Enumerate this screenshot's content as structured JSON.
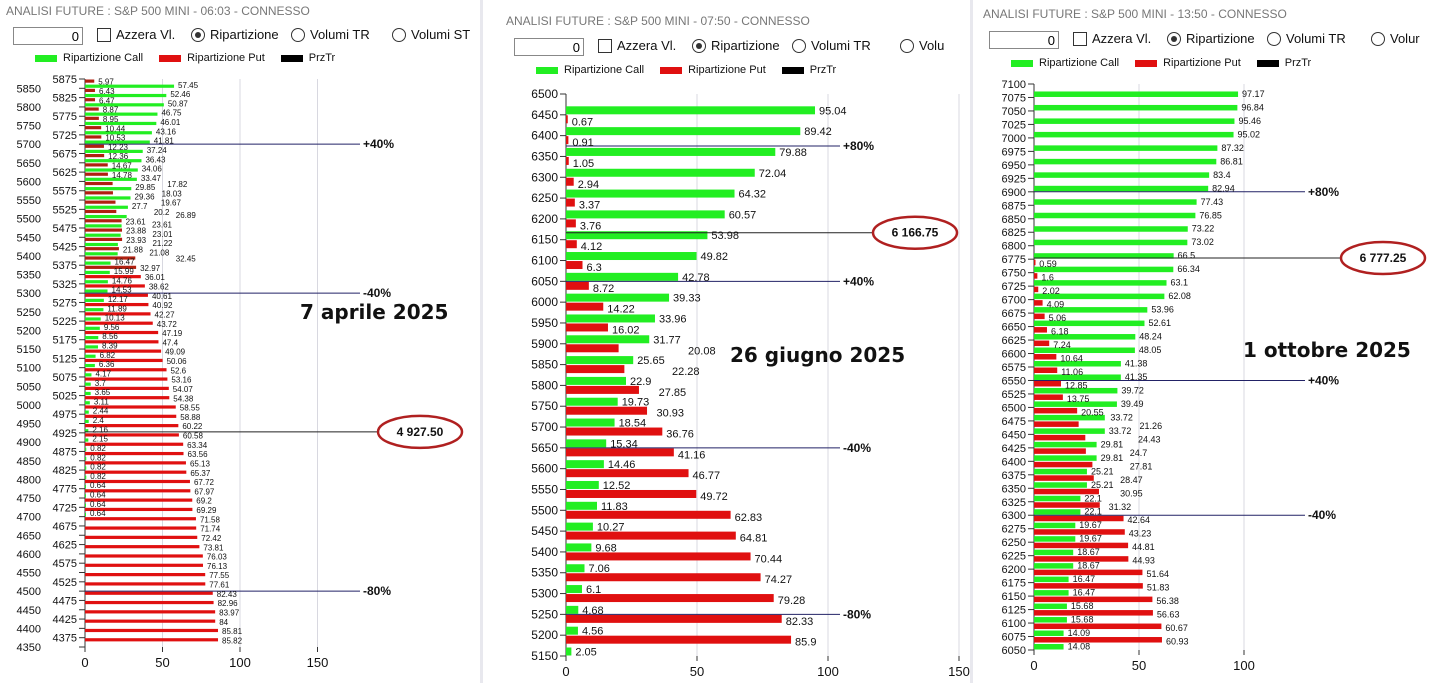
{
  "colors": {
    "call": "#22ee22",
    "put": "#e01010",
    "put_dark": "#b02010",
    "prztr": "#000000",
    "level_line": "#222266",
    "ellipse": "#b02020"
  },
  "panels": [
    {
      "title": "ANALISI FUTURE : S&P 500 MINI - 06:03 - CONNESSO",
      "toolbar": {
        "number_value": "0",
        "checkbox_label": "Azzera Vl.",
        "radio_1": "Ripartizione",
        "radio_2": "Volumi TR",
        "radio_3": "Volumi ST"
      },
      "legend": {
        "call": "Ripartizione Call",
        "put": "Ripartizione Put",
        "prztr": "PrzTr"
      },
      "date_label": "7 aprile 2025"
    },
    {
      "title": "ANALISI FUTURE : S&P 500 MINI - 07:50 - CONNESSO",
      "toolbar": {
        "number_value": "0",
        "checkbox_label": "Azzera Vl.",
        "radio_1": "Ripartizione",
        "radio_2": "Volumi TR",
        "radio_3": "Volu"
      },
      "legend": {
        "call": "Ripartizione Call",
        "put": "Ripartizione Put",
        "prztr": "PrzTr"
      },
      "date_label": "26 giugno 2025"
    },
    {
      "title": "ANALISI FUTURE : S&P 500 MINI - 13:50 - CONNESSO",
      "toolbar": {
        "number_value": "0",
        "checkbox_label": "Azzera Vl.",
        "radio_1": "Ripartizione",
        "radio_2": "Volumi TR",
        "radio_3": "Volur"
      },
      "legend": {
        "call": "Ripartizione Call",
        "put": "Ripartizione Put",
        "prztr": "PrzTr"
      },
      "date_label": "1 ottobre 2025"
    }
  ],
  "chart_data": [
    {
      "type": "bar",
      "orientation": "horizontal",
      "title": "7 aprile 2025",
      "xlim": [
        0,
        150
      ],
      "xticks": [
        0,
        50,
        100,
        150
      ],
      "grid": true,
      "y_range": [
        4350,
        5875
      ],
      "series": [
        {
          "name": "Ripartizione Call",
          "points": [
            [
              5850,
              57.45
            ],
            [
              5825,
              52.46
            ],
            [
              5800,
              50.87
            ],
            [
              5775,
              46.75
            ],
            [
              5750,
              46.01
            ],
            [
              5725,
              43.16
            ],
            [
              5700,
              41.81
            ],
            [
              5675,
              37.24
            ],
            [
              5650,
              36.43
            ],
            [
              5625,
              34.06
            ],
            [
              5600,
              33.47
            ],
            [
              5575,
              29.85
            ],
            [
              5550,
              29.36
            ],
            [
              5525,
              27.7
            ],
            [
              5500,
              26.89
            ],
            [
              5475,
              23.61
            ],
            [
              5450,
              23.01
            ],
            [
              5425,
              21.22
            ],
            [
              5400,
              21.08
            ],
            [
              5375,
              16.47
            ],
            [
              5350,
              15.99
            ],
            [
              5325,
              14.76
            ],
            [
              5300,
              14.53
            ],
            [
              5275,
              12.17
            ],
            [
              5250,
              11.89
            ],
            [
              5225,
              10.13
            ],
            [
              5200,
              9.56
            ],
            [
              5175,
              8.56
            ],
            [
              5150,
              8.39
            ],
            [
              5125,
              6.82
            ],
            [
              5100,
              6.36
            ],
            [
              5075,
              4.17
            ],
            [
              5050,
              3.7
            ],
            [
              5025,
              3.65
            ],
            [
              5000,
              3.11
            ],
            [
              4975,
              2.44
            ],
            [
              4950,
              2.4
            ],
            [
              4925,
              2.16
            ],
            [
              4900,
              2.15
            ],
            [
              4875,
              0.82
            ],
            [
              4850,
              0.82
            ],
            [
              4825,
              0.82
            ],
            [
              4800,
              0.82
            ],
            [
              4775,
              0.64
            ],
            [
              4750,
              0.64
            ],
            [
              4725,
              0.64
            ],
            [
              4700,
              0.64
            ]
          ]
        },
        {
          "name": "Ripartizione Put",
          "points": [
            [
              5875,
              5.97
            ],
            [
              5850,
              6.43
            ],
            [
              5825,
              6.47
            ],
            [
              5800,
              8.87
            ],
            [
              5775,
              8.95
            ],
            [
              5750,
              10.44
            ],
            [
              5725,
              10.53
            ],
            [
              5700,
              12.23
            ],
            [
              5675,
              12.36
            ],
            [
              5650,
              14.67
            ],
            [
              5625,
              14.78
            ],
            [
              5600,
              17.82
            ],
            [
              5575,
              18.03
            ],
            [
              5550,
              19.67
            ],
            [
              5525,
              20.2
            ],
            [
              5500,
              23.61
            ],
            [
              5475,
              23.88
            ],
            [
              5450,
              23.93
            ],
            [
              5425,
              21.88
            ],
            [
              5400,
              32.45
            ],
            [
              5375,
              32.97
            ],
            [
              5350,
              36.01
            ],
            [
              5325,
              38.62
            ],
            [
              5300,
              40.61
            ],
            [
              5275,
              40.92
            ],
            [
              5250,
              42.27
            ],
            [
              5225,
              43.72
            ],
            [
              5200,
              47.19
            ],
            [
              5175,
              47.4
            ],
            [
              5150,
              49.09
            ],
            [
              5125,
              50.06
            ],
            [
              5100,
              52.6
            ],
            [
              5075,
              53.16
            ],
            [
              5050,
              54.07
            ],
            [
              5025,
              54.38
            ],
            [
              5000,
              58.55
            ],
            [
              4975,
              58.88
            ],
            [
              4950,
              60.22
            ],
            [
              4925,
              60.58
            ],
            [
              4900,
              63.34
            ],
            [
              4875,
              63.56
            ],
            [
              4850,
              65.13
            ],
            [
              4825,
              65.37
            ],
            [
              4800,
              67.72
            ],
            [
              4775,
              67.97
            ],
            [
              4750,
              69.2
            ],
            [
              4725,
              69.29
            ],
            [
              4700,
              71.58
            ],
            [
              4675,
              71.74
            ],
            [
              4650,
              72.42
            ],
            [
              4625,
              73.81
            ],
            [
              4600,
              76.03
            ],
            [
              4575,
              76.13
            ],
            [
              4550,
              77.55
            ],
            [
              4525,
              77.61
            ],
            [
              4500,
              82.43
            ],
            [
              4475,
              82.96
            ],
            [
              4450,
              83.97
            ],
            [
              4425,
              84
            ],
            [
              4400,
              85.81
            ],
            [
              4375,
              85.82
            ]
          ]
        }
      ],
      "levels": [
        {
          "y": 5700,
          "label": "+40%"
        },
        {
          "y": 5300,
          "label": "-40%"
        },
        {
          "y": 4500,
          "label": "-80%"
        }
      ],
      "price_marker": {
        "y": 4927.5,
        "label": "4 927.50"
      }
    },
    {
      "type": "bar",
      "orientation": "horizontal",
      "title": "26 giugno 2025",
      "xlim": [
        0,
        150
      ],
      "xticks": [
        0,
        50,
        100,
        150
      ],
      "grid": true,
      "y_range": [
        5150,
        6500
      ],
      "series": [
        {
          "name": "Ripartizione Call",
          "points": [
            [
              6450,
              95.04
            ],
            [
              6400,
              89.42
            ],
            [
              6350,
              79.88
            ],
            [
              6300,
              72.04
            ],
            [
              6250,
              64.32
            ],
            [
              6200,
              60.57
            ],
            [
              6150,
              53.98
            ],
            [
              6100,
              49.82
            ],
            [
              6050,
              42.78
            ],
            [
              6000,
              39.33
            ],
            [
              5950,
              33.96
            ],
            [
              5900,
              31.77
            ],
            [
              5850,
              25.65
            ],
            [
              5800,
              22.9
            ],
            [
              5750,
              19.73
            ],
            [
              5700,
              18.54
            ],
            [
              5650,
              15.34
            ],
            [
              5600,
              14.46
            ],
            [
              5550,
              12.52
            ],
            [
              5500,
              11.83
            ],
            [
              5450,
              10.27
            ],
            [
              5400,
              9.68
            ],
            [
              5350,
              7.06
            ],
            [
              5300,
              6.1
            ],
            [
              5250,
              4.68
            ],
            [
              5200,
              4.56
            ],
            [
              5150,
              2.05
            ]
          ]
        },
        {
          "name": "Ripartizione Put",
          "points": [
            [
              6450,
              0.67
            ],
            [
              6400,
              0.91
            ],
            [
              6350,
              1.05
            ],
            [
              6300,
              2.94
            ],
            [
              6250,
              3.37
            ],
            [
              6200,
              3.76
            ],
            [
              6150,
              4.12
            ],
            [
              6100,
              6.3
            ],
            [
              6050,
              8.72
            ],
            [
              6000,
              14.22
            ],
            [
              5950,
              16.02
            ],
            [
              5900,
              20.08
            ],
            [
              5850,
              22.28
            ],
            [
              5800,
              27.85
            ],
            [
              5750,
              30.93
            ],
            [
              5700,
              36.76
            ],
            [
              5650,
              41.16
            ],
            [
              5600,
              46.77
            ],
            [
              5550,
              49.72
            ],
            [
              5500,
              62.83
            ],
            [
              5450,
              64.81
            ],
            [
              5400,
              70.44
            ],
            [
              5350,
              74.27
            ],
            [
              5300,
              79.28
            ],
            [
              5250,
              82.33
            ],
            [
              5200,
              85.9
            ]
          ]
        }
      ],
      "levels": [
        {
          "y": 6375,
          "label": "+80%"
        },
        {
          "y": 6050,
          "label": "+40%"
        },
        {
          "y": 5650,
          "label": "-40%"
        },
        {
          "y": 5250,
          "label": "-80%"
        }
      ],
      "price_marker": {
        "y": 6166.75,
        "label": "6 166.75"
      }
    },
    {
      "type": "bar",
      "orientation": "horizontal",
      "title": "1 ottobre 2025",
      "xlim": [
        0,
        150
      ],
      "xticks": [
        0,
        50,
        100
      ],
      "grid": true,
      "y_range": [
        6050,
        7100
      ],
      "series": [
        {
          "name": "Ripartizione Call",
          "points": [
            [
              7075,
              97.17
            ],
            [
              7050,
              96.84
            ],
            [
              7025,
              95.46
            ],
            [
              7000,
              95.02
            ],
            [
              6975,
              87.32
            ],
            [
              6950,
              86.81
            ],
            [
              6925,
              83.4
            ],
            [
              6900,
              82.94
            ],
            [
              6875,
              77.43
            ],
            [
              6850,
              76.85
            ],
            [
              6825,
              73.22
            ],
            [
              6800,
              73.02
            ],
            [
              6775,
              66.5
            ],
            [
              6750,
              66.34
            ],
            [
              6725,
              63.1
            ],
            [
              6700,
              62.08
            ],
            [
              6675,
              53.96
            ],
            [
              6650,
              52.61
            ],
            [
              6625,
              48.24
            ],
            [
              6600,
              48.05
            ],
            [
              6575,
              41.38
            ],
            [
              6550,
              41.35
            ],
            [
              6525,
              39.72
            ],
            [
              6500,
              39.49
            ],
            [
              6475,
              33.72
            ],
            [
              6450,
              33.72
            ],
            [
              6425,
              29.81
            ],
            [
              6400,
              29.81
            ],
            [
              6375,
              25.21
            ],
            [
              6350,
              25.21
            ],
            [
              6325,
              22.1
            ],
            [
              6300,
              22.1
            ],
            [
              6275,
              19.67
            ],
            [
              6250,
              19.67
            ],
            [
              6225,
              18.67
            ],
            [
              6200,
              18.67
            ],
            [
              6175,
              16.47
            ],
            [
              6150,
              16.47
            ],
            [
              6125,
              15.68
            ],
            [
              6100,
              15.68
            ],
            [
              6075,
              14.09
            ],
            [
              6050,
              14.08
            ]
          ]
        },
        {
          "name": "Ripartizione Put",
          "points": [
            [
              6775,
              0.59
            ],
            [
              6750,
              1.6
            ],
            [
              6725,
              2.02
            ],
            [
              6700,
              4.09
            ],
            [
              6675,
              5.06
            ],
            [
              6650,
              6.18
            ],
            [
              6625,
              7.24
            ],
            [
              6600,
              10.64
            ],
            [
              6575,
              11.06
            ],
            [
              6550,
              12.85
            ],
            [
              6525,
              13.75
            ],
            [
              6500,
              20.55
            ],
            [
              6475,
              21.26
            ],
            [
              6450,
              24.43
            ],
            [
              6425,
              24.7
            ],
            [
              6400,
              27.81
            ],
            [
              6375,
              28.47
            ],
            [
              6350,
              30.95
            ],
            [
              6325,
              31.32
            ],
            [
              6300,
              42.64
            ],
            [
              6275,
              43.23
            ],
            [
              6250,
              44.81
            ],
            [
              6225,
              44.93
            ],
            [
              6200,
              51.64
            ],
            [
              6175,
              51.83
            ],
            [
              6150,
              56.38
            ],
            [
              6125,
              56.63
            ],
            [
              6100,
              60.67
            ],
            [
              6075,
              60.93
            ]
          ]
        }
      ],
      "levels": [
        {
          "y": 6900,
          "label": "+80%"
        },
        {
          "y": 6550,
          "label": "+40%"
        },
        {
          "y": 6300,
          "label": "-40%"
        }
      ],
      "price_marker": {
        "y": 6777.25,
        "label": "6 777.25"
      }
    }
  ]
}
